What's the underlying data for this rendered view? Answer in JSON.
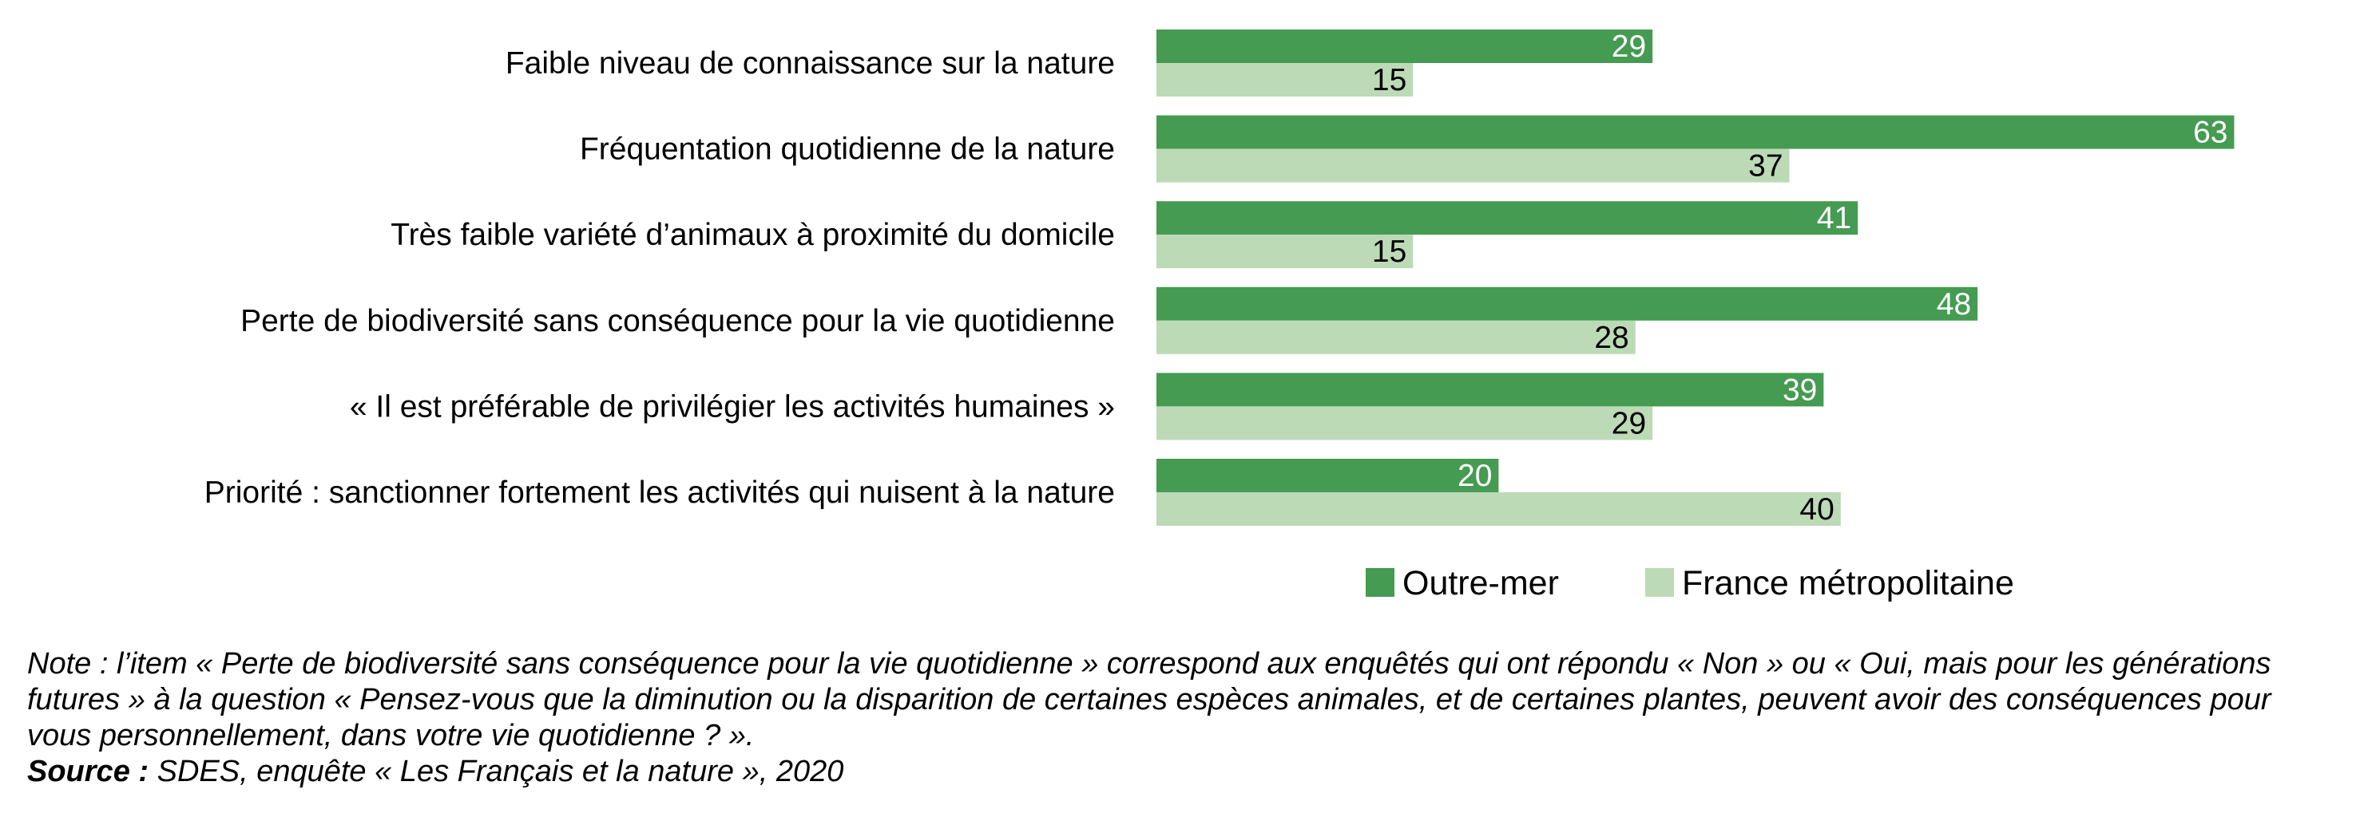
{
  "chart_data": {
    "type": "bar",
    "orientation": "horizontal",
    "categories": [
      "Faible niveau de connaissance sur la nature",
      "Fréquentation quotidienne de la nature",
      "Très faible variété d’animaux à proximité du domicile",
      "Perte de biodiversité sans conséquence pour la vie quotidienne",
      "« Il est préférable de privilégier les activités humaines »",
      "Priorité : sanctionner fortement les activités qui nuisent à la nature"
    ],
    "series": [
      {
        "name": "Outre-mer",
        "color": "#459b51",
        "label_color": "#ffffff",
        "values": [
          29,
          63,
          41,
          48,
          39,
          20
        ]
      },
      {
        "name": "France métropolitaine",
        "color": "#bcdab6",
        "label_color": "#000000",
        "values": [
          15,
          37,
          15,
          28,
          29,
          40
        ]
      }
    ],
    "xlim": [
      0,
      63
    ],
    "grid": false,
    "legend": "bottom",
    "title": "",
    "xlabel": "",
    "ylabel": ""
  },
  "notes": {
    "note": "Note : l’item « Perte de biodiversité sans conséquence pour la vie quotidienne » correspond aux enquêtés qui ont répondu « Non » ou « Oui, mais pour les générations futures » à la question « Pensez-vous que la diminution ou la disparition de certaines espèces animales, et de certaines plantes, peuvent avoir des conséquences pour vous personnellement, dans votre vie quotidienne ? ».",
    "source_label": "Source :",
    "source_text": " SDES, enquête « Les Français et la nature », 2020"
  }
}
